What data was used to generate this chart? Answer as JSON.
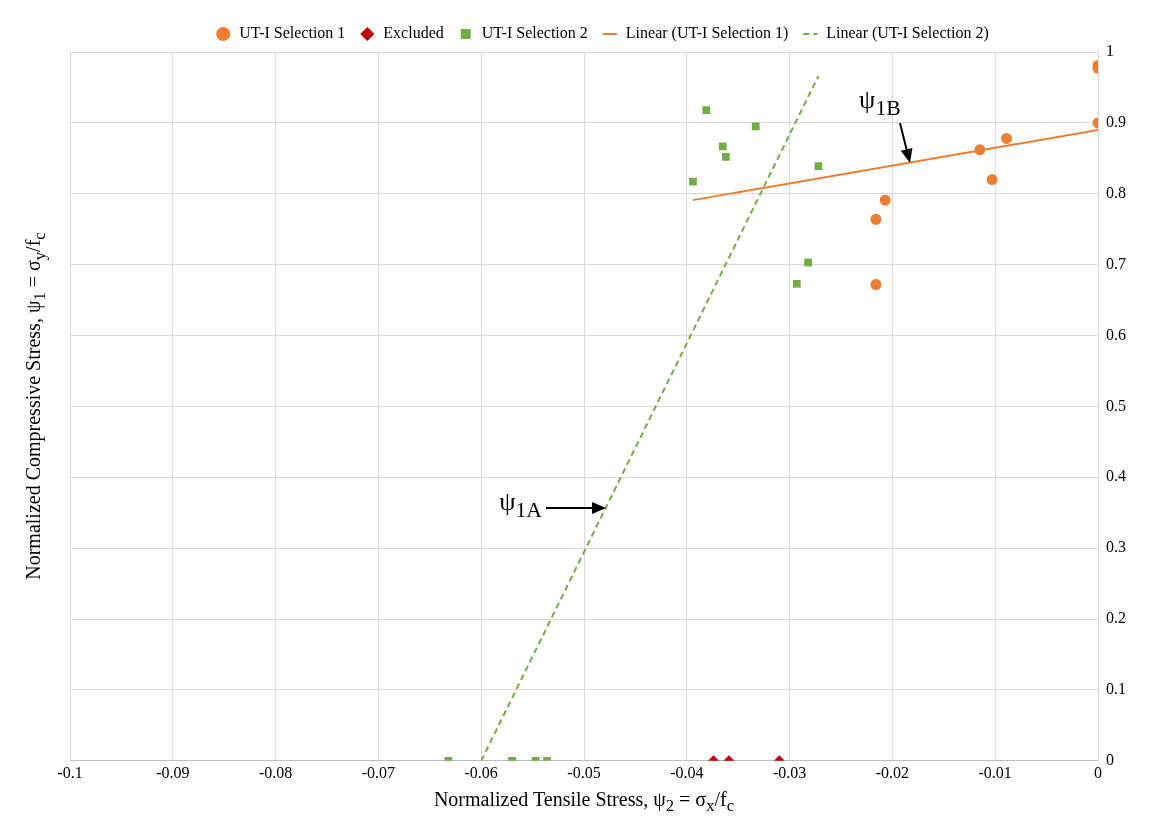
{
  "chart_data": {
    "type": "scatter",
    "xlabel": "Normalized Tensile Stress, ψ$_{2}$ = σ$_{x}$/f$_{c}$",
    "ylabel": "Normalized Compressive Stress, ψ$_{1}$ = σ$_{y}$/f$_{c}$",
    "xlim": [
      -0.1,
      0
    ],
    "xticks": [
      -0.1,
      -0.09,
      -0.08,
      -0.07,
      -0.06,
      -0.05,
      -0.04,
      -0.03,
      -0.02,
      -0.01,
      0
    ],
    "ylim": [
      0,
      1
    ],
    "yticks": [
      0,
      0.1,
      0.2,
      0.3,
      0.4,
      0.5,
      0.6,
      0.7,
      0.8,
      0.9,
      1
    ],
    "grid": true,
    "legend": "top",
    "series": [
      {
        "name": "UT-I Selection 1",
        "color": "#ed7d31",
        "marker": "circle",
        "x": [
          0,
          0,
          0,
          -0.0089,
          -0.0115,
          -0.0103,
          -0.0207,
          -0.0216,
          -0.0216
        ],
        "values": [
          0.981,
          0.977,
          0.9,
          0.878,
          0.862,
          0.82,
          0.791,
          0.764,
          0.672
        ]
      },
      {
        "name": "Excluded",
        "color": "#c00000",
        "marker": "diamond",
        "x": [
          -0.0374,
          -0.0359,
          -0.031
        ],
        "values": [
          0,
          0,
          0
        ]
      },
      {
        "name": "UT-I Selection 2",
        "color": "#70ad47",
        "marker": "square",
        "x": [
          -0.0632,
          -0.057,
          -0.0547,
          -0.0536,
          -0.0381,
          -0.0333,
          -0.0365,
          -0.0362,
          -0.0394,
          -0.0272,
          -0.0282,
          -0.0293
        ],
        "values": [
          0,
          0,
          0,
          0,
          0.918,
          0.895,
          0.867,
          0.852,
          0.817,
          0.839,
          0.703,
          0.673
        ]
      },
      {
        "name": "Linear (UT-I Selection 1)",
        "type": "line",
        "color": "#ed7d31",
        "marker": "none",
        "line_style": "solid",
        "x": [
          -0.0394,
          0
        ],
        "values": [
          0.791,
          0.89
        ]
      },
      {
        "name": "Linear (UT-I Selection 2)",
        "type": "line",
        "color": "#70ad47",
        "marker": "none",
        "line_style": "dashed",
        "x": [
          -0.06,
          -0.0272
        ],
        "values": [
          0,
          0.966
        ]
      }
    ],
    "annotations": [
      {
        "text": "ψ$_{1A}$",
        "x": -0.0479,
        "y": 0.356
      },
      {
        "text": "ψ$_{1B}$",
        "x": -0.0183,
        "y": 0.844
      }
    ]
  }
}
